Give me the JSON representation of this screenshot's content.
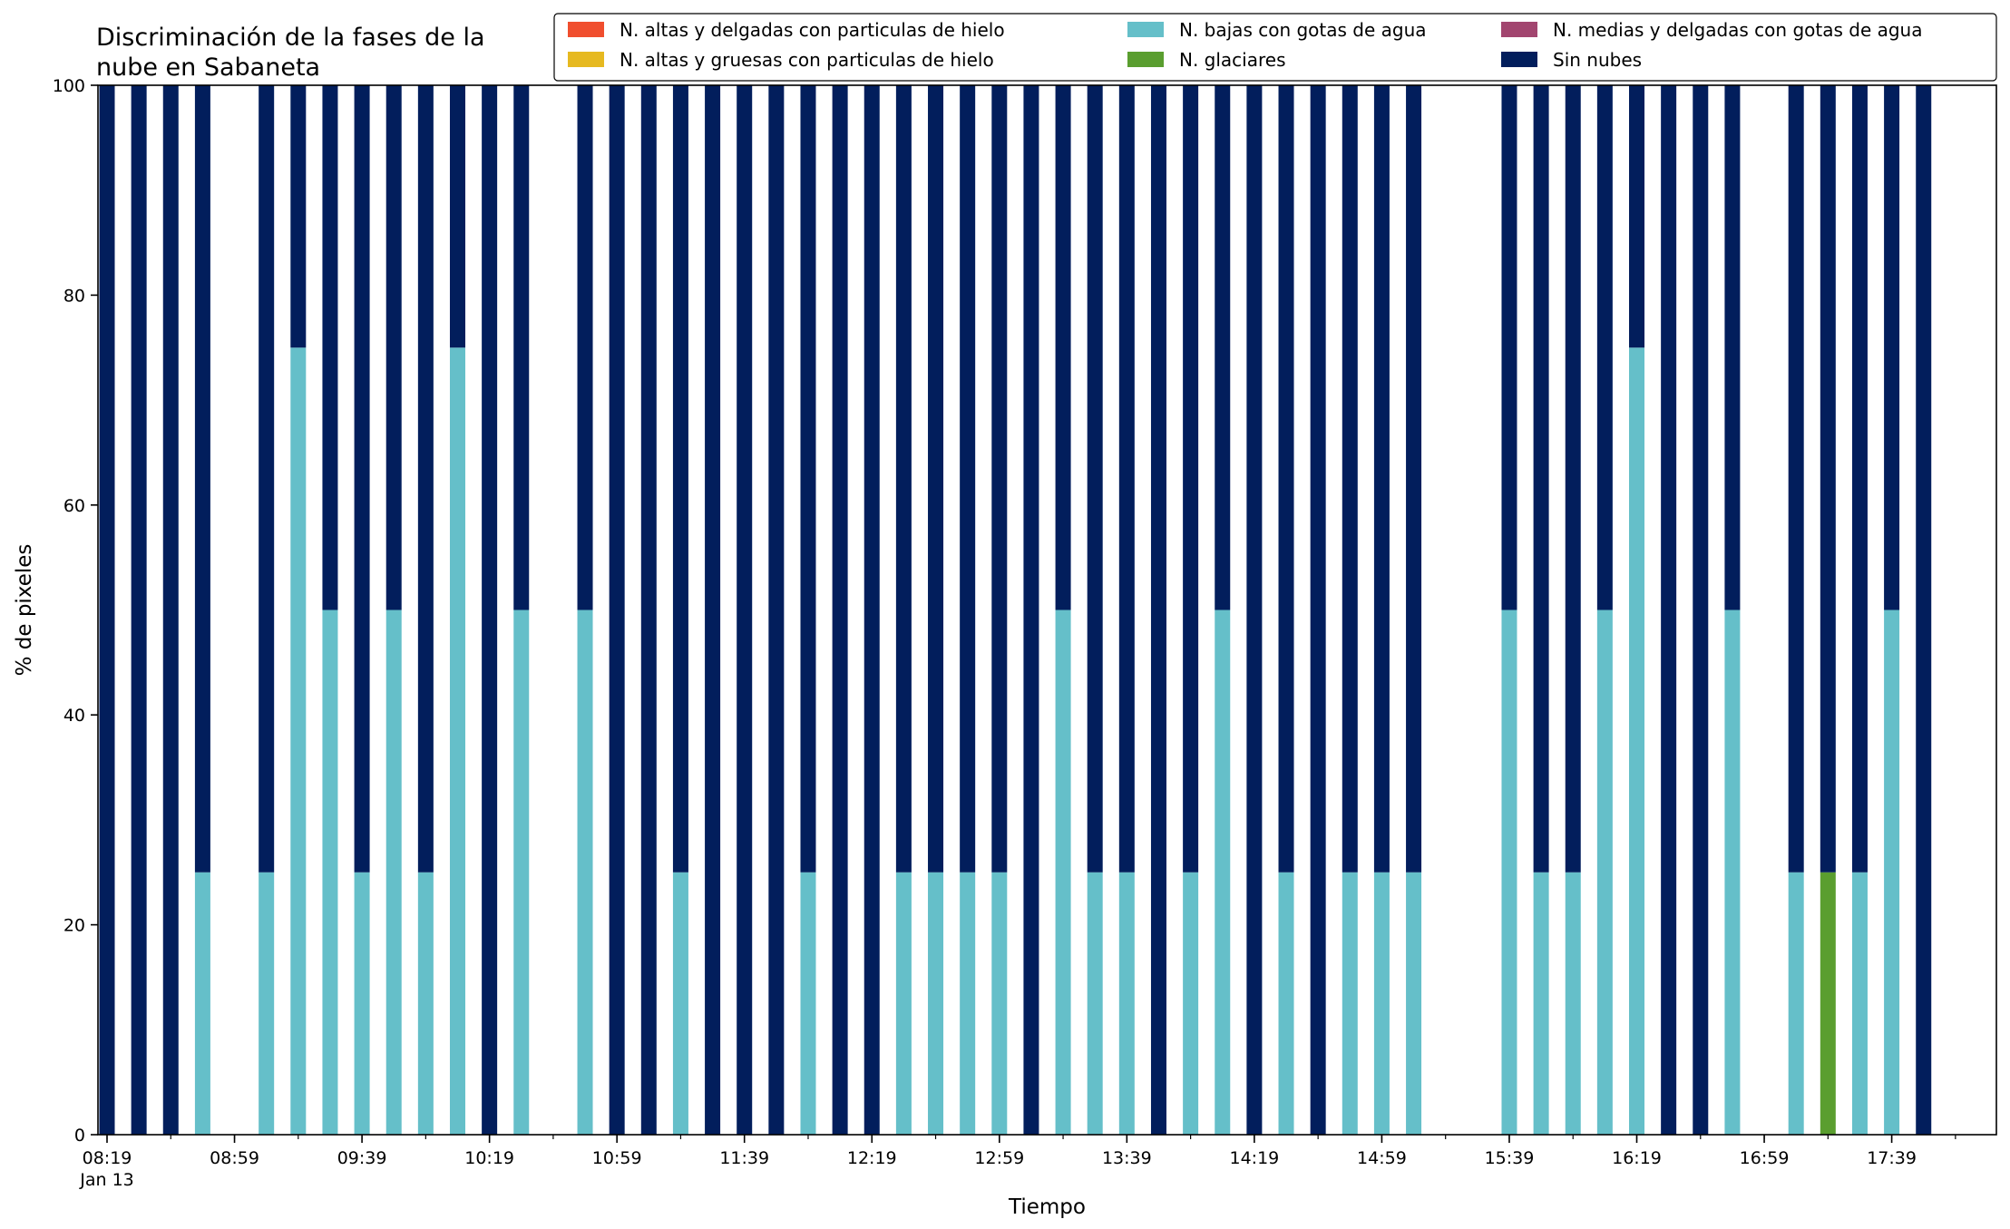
{
  "chart_data": {
    "type": "bar",
    "stacked": true,
    "title_lines": [
      "Discriminación de la fases de la",
      "nube en Sabaneta"
    ],
    "xlabel": "Tiempo",
    "ylabel": "% de pixeles",
    "ylim": [
      0,
      100
    ],
    "yticks": [
      0,
      20,
      40,
      60,
      80,
      100
    ],
    "grid": false,
    "legend_position": "top-right",
    "x_time_range": [
      "08:19",
      "18:09"
    ],
    "x_date_label": "Jan 13",
    "xtick_labels": [
      "08:19",
      "08:59",
      "09:39",
      "10:19",
      "10:59",
      "11:39",
      "12:19",
      "12:59",
      "13:39",
      "14:19",
      "14:59",
      "15:39",
      "16:19",
      "16:59",
      "17:39"
    ],
    "x": [
      "08:19",
      "08:29",
      "08:39",
      "08:49",
      "09:09",
      "09:19",
      "09:29",
      "09:39",
      "09:49",
      "09:59",
      "10:09",
      "10:19",
      "10:29",
      "10:49",
      "10:59",
      "11:09",
      "11:19",
      "11:29",
      "11:39",
      "11:49",
      "11:59",
      "12:09",
      "12:19",
      "12:29",
      "12:39",
      "12:49",
      "12:59",
      "13:09",
      "13:19",
      "13:29",
      "13:39",
      "13:49",
      "13:59",
      "14:09",
      "14:19",
      "14:29",
      "14:39",
      "14:49",
      "14:59",
      "15:09",
      "15:39",
      "15:49",
      "15:59",
      "16:09",
      "16:19",
      "16:29",
      "16:39",
      "16:49",
      "17:09",
      "17:19",
      "17:29",
      "17:39",
      "17:49"
    ],
    "series": [
      {
        "name": "N. altas y delgadas con particulas de hielo",
        "color": "#f04e2e",
        "values": [
          0,
          0,
          0,
          0,
          0,
          0,
          0,
          0,
          0,
          0,
          0,
          0,
          0,
          0,
          0,
          0,
          0,
          0,
          0,
          0,
          0,
          0,
          0,
          0,
          0,
          0,
          0,
          0,
          0,
          0,
          0,
          0,
          0,
          0,
          0,
          0,
          0,
          0,
          0,
          0,
          0,
          0,
          0,
          0,
          0,
          0,
          0,
          0,
          0,
          0,
          0,
          0,
          0
        ]
      },
      {
        "name": "N. altas y gruesas con particulas de hielo",
        "color": "#e6b920",
        "values": [
          0,
          0,
          0,
          0,
          0,
          0,
          0,
          0,
          0,
          0,
          0,
          0,
          0,
          0,
          0,
          0,
          0,
          0,
          0,
          0,
          0,
          0,
          0,
          0,
          0,
          0,
          0,
          0,
          0,
          0,
          0,
          0,
          0,
          0,
          0,
          0,
          0,
          0,
          0,
          0,
          0,
          0,
          0,
          0,
          0,
          0,
          0,
          0,
          0,
          0,
          0,
          0,
          0
        ]
      },
      {
        "name": "N. bajas con gotas de agua",
        "color": "#65bfc9",
        "values": [
          0,
          0,
          0,
          25,
          25,
          75,
          50,
          25,
          50,
          25,
          75,
          0,
          50,
          50,
          0,
          0,
          25,
          0,
          0,
          0,
          25,
          0,
          0,
          25,
          25,
          25,
          25,
          0,
          50,
          25,
          25,
          0,
          25,
          50,
          0,
          25,
          0,
          25,
          25,
          25,
          50,
          25,
          25,
          50,
          75,
          0,
          0,
          50,
          25,
          0,
          25,
          50,
          0
        ]
      },
      {
        "name": "N. glaciares",
        "color": "#5a9e2f",
        "values": [
          0,
          0,
          0,
          0,
          0,
          0,
          0,
          0,
          0,
          0,
          0,
          0,
          0,
          0,
          0,
          0,
          0,
          0,
          0,
          0,
          0,
          0,
          0,
          0,
          0,
          0,
          0,
          0,
          0,
          0,
          0,
          0,
          0,
          0,
          0,
          0,
          0,
          0,
          0,
          0,
          0,
          0,
          0,
          0,
          0,
          0,
          0,
          0,
          0,
          25,
          0,
          0,
          0
        ]
      },
      {
        "name": "N. medias y delgadas con gotas de agua",
        "color": "#a2456f",
        "values": [
          0,
          0,
          0,
          0,
          0,
          0,
          0,
          0,
          0,
          0,
          0,
          0,
          0,
          0,
          0,
          0,
          0,
          0,
          0,
          0,
          0,
          0,
          0,
          0,
          0,
          0,
          0,
          0,
          0,
          0,
          0,
          0,
          0,
          0,
          0,
          0,
          0,
          0,
          0,
          0,
          0,
          0,
          0,
          0,
          0,
          0,
          0,
          0,
          0,
          0,
          0,
          0,
          0
        ]
      },
      {
        "name": "Sin nubes",
        "color": "#021e5c",
        "values": [
          100,
          100,
          100,
          75,
          75,
          25,
          50,
          75,
          50,
          75,
          25,
          100,
          50,
          50,
          100,
          100,
          75,
          100,
          100,
          100,
          75,
          100,
          100,
          75,
          75,
          75,
          75,
          100,
          50,
          75,
          75,
          100,
          75,
          50,
          100,
          75,
          100,
          75,
          75,
          75,
          50,
          75,
          75,
          50,
          25,
          100,
          100,
          50,
          75,
          75,
          75,
          50,
          100
        ]
      }
    ]
  }
}
